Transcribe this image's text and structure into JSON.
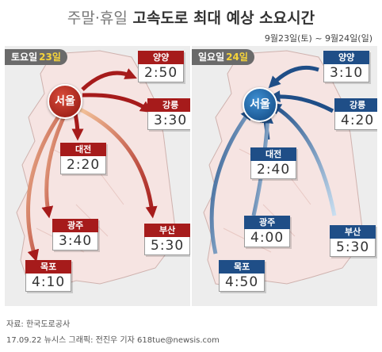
{
  "header": {
    "title_part1": "주말·휴일",
    "title_part2": "고속도로 최대 예상 소요시간",
    "date_range": "9월23일(토) ~ 9월24일(일)"
  },
  "saturday": {
    "day_label": "토요일",
    "day_num": "23일",
    "hub": "서울",
    "cities": [
      {
        "name": "양양",
        "time": "2:50"
      },
      {
        "name": "강릉",
        "time": "3:30"
      },
      {
        "name": "대전",
        "time": "2:20"
      },
      {
        "name": "광주",
        "time": "3:40"
      },
      {
        "name": "부산",
        "time": "5:30"
      },
      {
        "name": "목포",
        "time": "4:10"
      }
    ]
  },
  "sunday": {
    "day_label": "일요일",
    "day_num": "24일",
    "hub": "서울",
    "cities": [
      {
        "name": "양양",
        "time": "3:10"
      },
      {
        "name": "강릉",
        "time": "4:20"
      },
      {
        "name": "대전",
        "time": "2:40"
      },
      {
        "name": "광주",
        "time": "4:00"
      },
      {
        "name": "부산",
        "time": "5:30"
      },
      {
        "name": "목포",
        "time": "4:50"
      }
    ]
  },
  "footer": {
    "source": "자료: 한국도로공사",
    "credit": "17.09.22 뉴시스 그래픽: 전진우 기자 618tue@newsis.com"
  },
  "colors": {
    "outbound": "#a61b1b",
    "inbound": "#1f4e87",
    "land": "#f6e4e2"
  }
}
